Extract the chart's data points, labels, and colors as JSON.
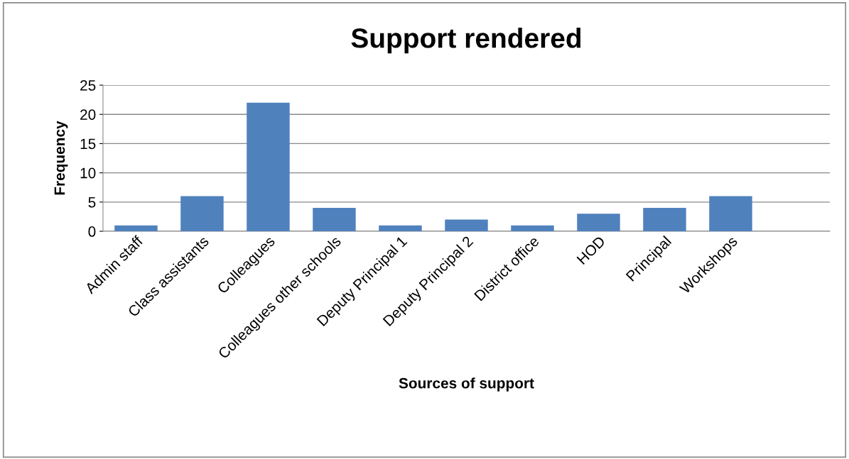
{
  "chart_data": {
    "type": "bar",
    "title": "Support rendered",
    "xlabel": "Sources of support",
    "ylabel": "Frequency",
    "categories": [
      "Admin staff",
      "Class assistants",
      "Colleagues",
      "Colleagues other schools",
      "Deputy Principal 1",
      "Deputy Principal 2",
      "District office",
      "HOD",
      "Principal",
      "Workshops",
      null
    ],
    "values": [
      1,
      6,
      22,
      4,
      1,
      2,
      1,
      3,
      4,
      6,
      null
    ],
    "color": "#4f81bd",
    "ylim": [
      0,
      25
    ],
    "yticks": [
      0,
      5,
      10,
      15,
      20,
      25
    ],
    "grid": "y",
    "legend": false
  }
}
